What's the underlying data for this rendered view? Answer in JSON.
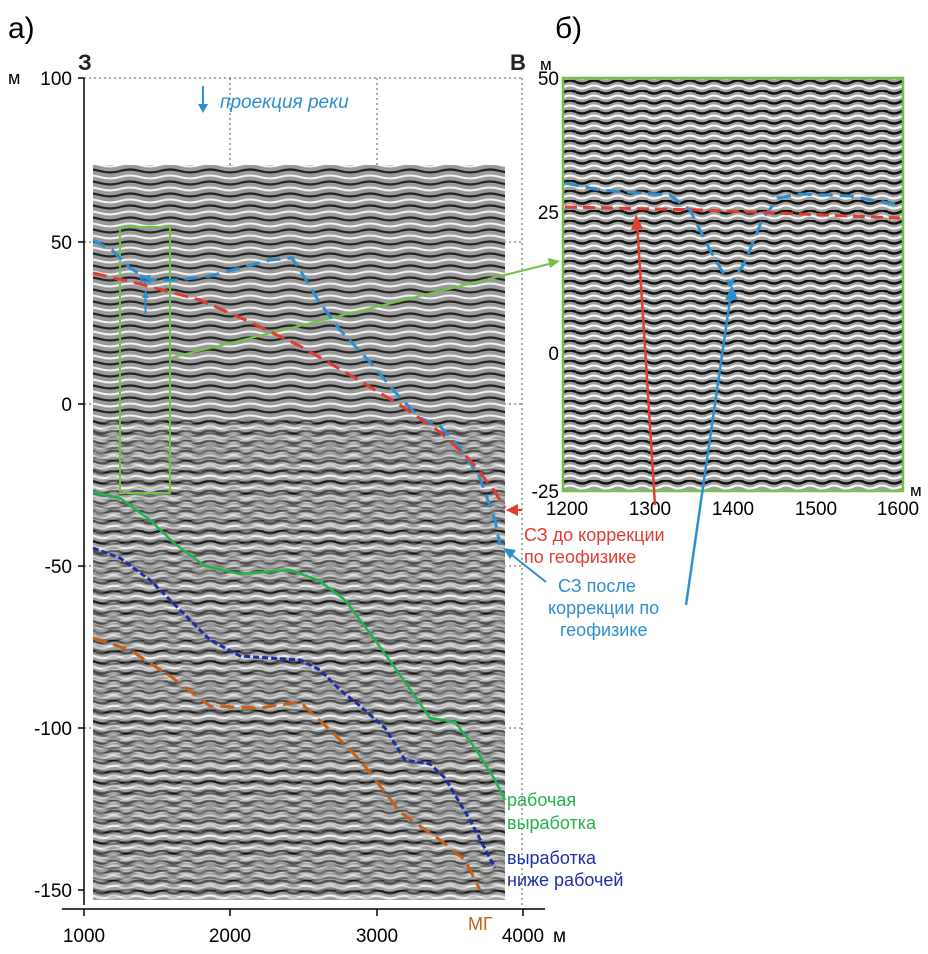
{
  "panel_a": {
    "label": "а)",
    "west": "З",
    "east": "В",
    "y_unit": "м",
    "x_unit": "м",
    "y_ticks": [
      "100",
      "50",
      "0",
      "-50",
      "-100",
      "-150"
    ],
    "x_ticks": [
      "1000",
      "2000",
      "3000",
      "4000"
    ],
    "river_label": "проекция реки",
    "river_letter": "м"
  },
  "panel_b": {
    "label": "б)",
    "y_unit": "м",
    "x_unit": "м",
    "y_ticks": [
      "50",
      "25",
      "0",
      "-25"
    ],
    "x_ticks": [
      "1200",
      "1300",
      "1400",
      "1500",
      "1600"
    ]
  },
  "annotations": {
    "sz_before": [
      "СЗ до коррекции",
      "по геофизике"
    ],
    "sz_after": [
      "СЗ после",
      "коррекции по",
      "геофизике"
    ],
    "working": [
      "рабочая",
      "выработка"
    ],
    "below": [
      "выработка",
      "ниже рабочей"
    ],
    "mg": "МГ"
  },
  "colors": {
    "sz_before": "#e03c31",
    "sz_after": "#2e8fd0",
    "working": "#22b34a",
    "below": "#1c2fa8",
    "mg": "#c8601a",
    "frame_b": "#72c246",
    "seismic_bg": "#8c8c8c"
  }
}
